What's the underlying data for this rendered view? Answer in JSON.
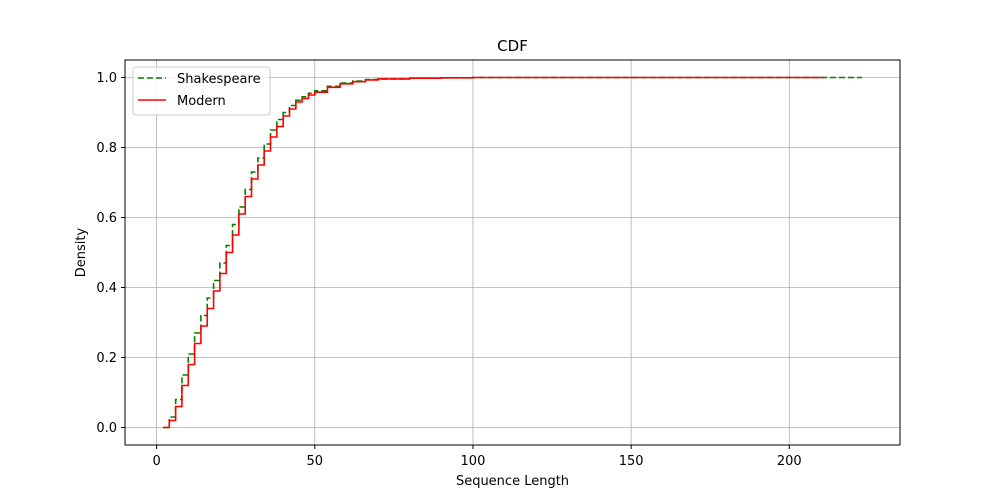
{
  "chart_data": {
    "type": "line",
    "title": "CDF",
    "xlabel": "Sequence Length",
    "ylabel": "Density",
    "xlim": [
      -10,
      235
    ],
    "ylim": [
      -0.05,
      1.05
    ],
    "xticks": [
      0,
      50,
      100,
      150,
      200
    ],
    "yticks": [
      0.0,
      0.2,
      0.4,
      0.6,
      0.8,
      1.0
    ],
    "xtick_labels": [
      "0",
      "50",
      "100",
      "150",
      "200"
    ],
    "ytick_labels": [
      "0.0",
      "0.2",
      "0.4",
      "0.6",
      "0.8",
      "1.0"
    ],
    "grid": true,
    "legend_position": "upper-left",
    "series": [
      {
        "name": "Shakespeare",
        "color": "#008000",
        "style": "dashed",
        "x": [
          2,
          4,
          6,
          8,
          10,
          12,
          14,
          16,
          18,
          20,
          22,
          24,
          26,
          28,
          30,
          32,
          34,
          36,
          38,
          40,
          42,
          44,
          46,
          48,
          50,
          54,
          58,
          62,
          66,
          70,
          80,
          90,
          100,
          150,
          200,
          223
        ],
        "y": [
          0.0,
          0.03,
          0.08,
          0.15,
          0.21,
          0.27,
          0.32,
          0.37,
          0.42,
          0.47,
          0.52,
          0.58,
          0.63,
          0.68,
          0.73,
          0.77,
          0.81,
          0.85,
          0.88,
          0.9,
          0.92,
          0.935,
          0.945,
          0.955,
          0.962,
          0.975,
          0.984,
          0.99,
          0.994,
          0.996,
          0.998,
          0.999,
          1.0,
          1.0,
          1.0,
          1.0
        ]
      },
      {
        "name": "Modern",
        "color": "#ff0000",
        "style": "solid",
        "x": [
          2,
          4,
          6,
          8,
          10,
          12,
          14,
          16,
          18,
          20,
          22,
          24,
          26,
          28,
          30,
          32,
          34,
          36,
          38,
          40,
          42,
          44,
          46,
          48,
          50,
          54,
          58,
          62,
          66,
          70,
          80,
          90,
          100,
          150,
          200,
          211
        ],
        "y": [
          0.0,
          0.02,
          0.06,
          0.12,
          0.18,
          0.24,
          0.29,
          0.34,
          0.39,
          0.44,
          0.5,
          0.55,
          0.61,
          0.66,
          0.71,
          0.75,
          0.79,
          0.83,
          0.86,
          0.89,
          0.91,
          0.93,
          0.94,
          0.95,
          0.958,
          0.972,
          0.982,
          0.988,
          0.993,
          0.996,
          0.998,
          0.999,
          1.0,
          1.0,
          1.0,
          1.0
        ]
      }
    ]
  }
}
